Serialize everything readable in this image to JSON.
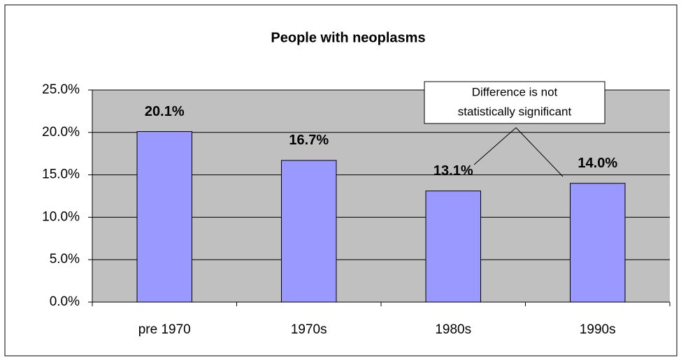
{
  "chart_data": {
    "type": "bar",
    "title": "People with neoplasms",
    "categories": [
      "pre 1970",
      "1970s",
      "1980s",
      "1990s"
    ],
    "values": [
      20.1,
      16.7,
      13.1,
      14.0
    ],
    "value_labels": [
      "20.1%",
      "16.7%",
      "13.1%",
      "14.0%"
    ],
    "color": "#9999ff",
    "ylim": [
      0,
      25
    ],
    "yticks": [
      {
        "value": 0,
        "label": "0.0%"
      },
      {
        "value": 5,
        "label": "5.0%"
      },
      {
        "value": 10,
        "label": "10.0%"
      },
      {
        "value": 15,
        "label": "15.0%"
      },
      {
        "value": 20,
        "label": "20.0%"
      },
      {
        "value": 25,
        "label": "25.0%"
      }
    ],
    "grid": true,
    "annotation": [
      "Difference is not",
      "statistically significant"
    ]
  }
}
